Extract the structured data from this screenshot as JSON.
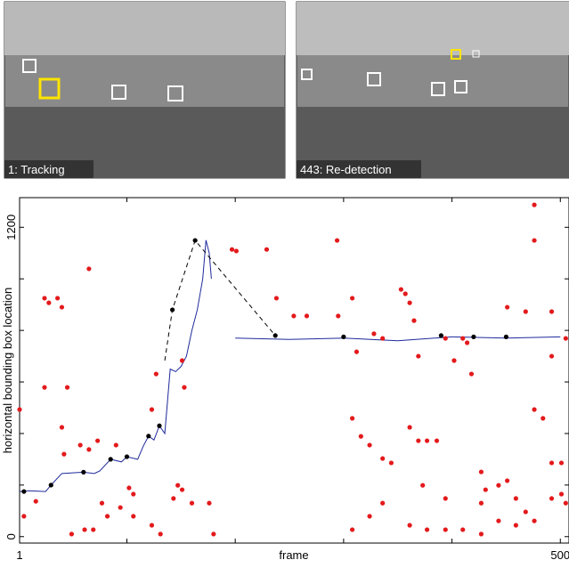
{
  "images": [
    {
      "caption": "1: Tracking"
    },
    {
      "caption": "443: Re-detection"
    }
  ],
  "chart_data": {
    "type": "scatter",
    "xlabel": "frame",
    "ylabel": "horizontal bounding box location",
    "xlim": [
      1,
      508
    ],
    "ylim": [
      -25,
      1315
    ],
    "xticks": [
      1,
      500
    ],
    "xminorticks": [
      100,
      200,
      300,
      400
    ],
    "yticks": [
      0,
      1200
    ],
    "yminorticks": [
      200,
      400,
      600,
      800,
      1000
    ],
    "series": [
      {
        "style": "line",
        "color": "#1f2a9c",
        "x": [
          1,
          10,
          25,
          30,
          40,
          60,
          70,
          75,
          85,
          95,
          100,
          110,
          115,
          120,
          125,
          130,
          135,
          140,
          145,
          150,
          155,
          160,
          165,
          170,
          173,
          176,
          178,
          null,
          200,
          250,
          300,
          350,
          400,
          450,
          500
        ],
        "values": [
          175,
          178,
          175,
          200,
          245,
          250,
          245,
          255,
          300,
          290,
          310,
          300,
          350,
          390,
          375,
          430,
          400,
          650,
          640,
          660,
          700,
          800,
          880,
          1000,
          1150,
          1100,
          1000,
          null,
          770,
          765,
          770,
          760,
          775,
          770,
          775
        ]
      },
      {
        "style": "dashed",
        "color": "#000000",
        "x": [
          135,
          142,
          163,
          237
        ],
        "values": [
          683,
          880,
          1149,
          780
        ]
      },
      {
        "style": "markers",
        "color": "#e31a1c",
        "x": [
          1,
          5,
          24,
          28,
          36,
          40,
          65,
          24,
          45,
          40,
          42,
          57,
          65,
          73,
          90,
          102,
          106,
          16,
          49,
          61,
          69,
          77,
          82,
          94,
          106,
          123,
          131,
          143,
          147,
          151,
          160,
          123,
          127,
          151,
          153,
          176,
          180,
          197,
          201,
          229,
          238,
          254,
          266,
          295,
          294,
          308,
          312,
          308,
          316,
          324,
          328,
          336,
          336,
          344,
          353,
          357,
          361,
          365,
          369,
          361,
          369,
          377,
          386,
          373,
          394,
          394,
          402,
          410,
          414,
          418,
          427,
          427,
          431,
          443,
          451,
          459,
          468,
          476,
          476,
          476,
          484,
          492,
          501,
          505,
          361,
          377,
          394,
          410,
          427,
          443,
          459,
          476,
          492,
          501,
          336,
          324,
          308,
          451,
          468,
          492,
          505,
          492
        ],
        "values": [
          493,
          79,
          925,
          907,
          925,
          890,
          1039,
          579,
          579,
          424,
          320,
          355,
          338,
          372,
          355,
          189,
          165,
          137,
          10,
          27,
          27,
          130,
          79,
          113,
          79,
          44,
          10,
          148,
          199,
          182,
          130,
          493,
          631,
          683,
          579,
          130,
          10,
          1114,
          1108,
          1114,
          925,
          856,
          856,
          856,
          1149,
          925,
          717,
          459,
          389,
          355,
          787,
          769,
          303,
          286,
          959,
          942,
          907,
          838,
          700,
          424,
          372,
          372,
          372,
          199,
          148,
          769,
          683,
          769,
          752,
          631,
          251,
          130,
          182,
          199,
          217,
          148,
          96,
          1287,
          1149,
          493,
          459,
          286,
          286,
          130,
          44,
          27,
          27,
          27,
          10,
          61,
          44,
          61,
          148,
          165,
          130,
          79,
          27,
          890,
          873,
          873,
          769,
          700
        ]
      },
      {
        "style": "markers",
        "color": "#000000",
        "x": [
          5,
          30,
          60,
          85,
          100,
          120,
          130,
          142,
          163,
          237,
          300,
          390,
          420,
          450
        ],
        "values": [
          175,
          200,
          250,
          300,
          310,
          390,
          430,
          880,
          1149,
          780,
          775,
          780,
          775,
          775
        ]
      }
    ]
  }
}
